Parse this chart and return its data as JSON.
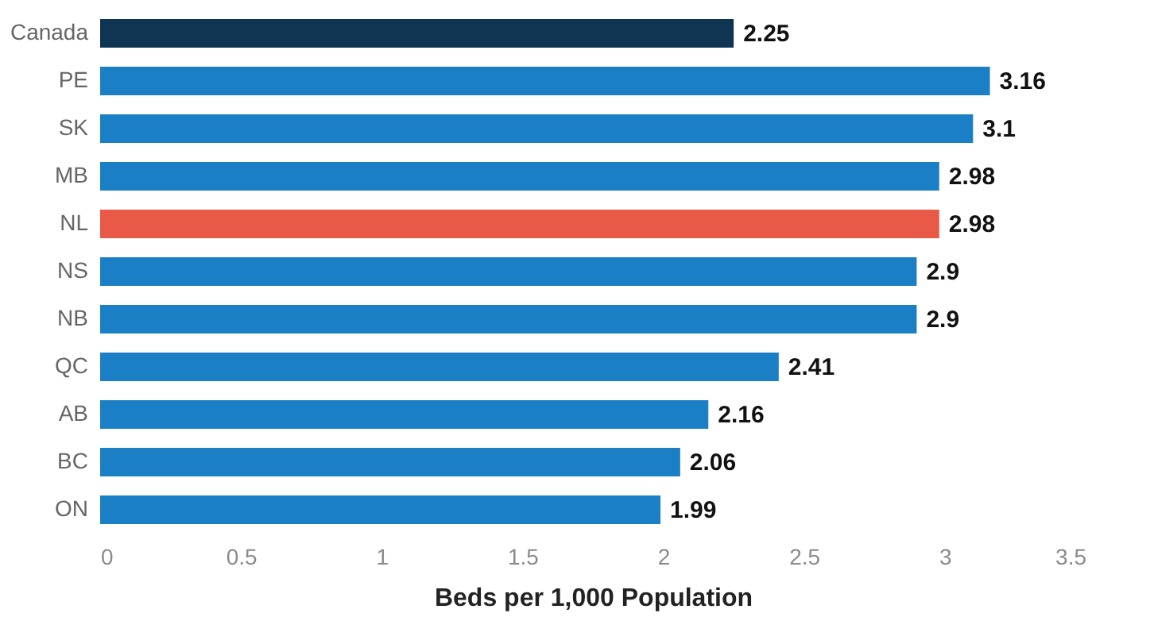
{
  "chart_data": {
    "type": "bar",
    "orientation": "horizontal",
    "xlabel": "Beds per 1,000 Population",
    "categories": [
      "Canada",
      "PE",
      "SK",
      "MB",
      "NL",
      "NS",
      "NB",
      "QC",
      "AB",
      "BC",
      "ON"
    ],
    "values": [
      2.25,
      3.16,
      3.1,
      2.98,
      2.98,
      2.9,
      2.9,
      2.41,
      2.16,
      2.06,
      1.99
    ],
    "colors": [
      "#0f3552",
      "#1a7fc4",
      "#1a7fc4",
      "#1a7fc4",
      "#e85a47",
      "#1a7fc4",
      "#1a7fc4",
      "#1a7fc4",
      "#1a7fc4",
      "#1a7fc4",
      "#1a7fc4"
    ],
    "xlim": [
      0,
      3.5
    ],
    "xticks": [
      0,
      0.5,
      1,
      1.5,
      2,
      2.5,
      3,
      3.5
    ],
    "data_labels": true,
    "grid": false
  }
}
